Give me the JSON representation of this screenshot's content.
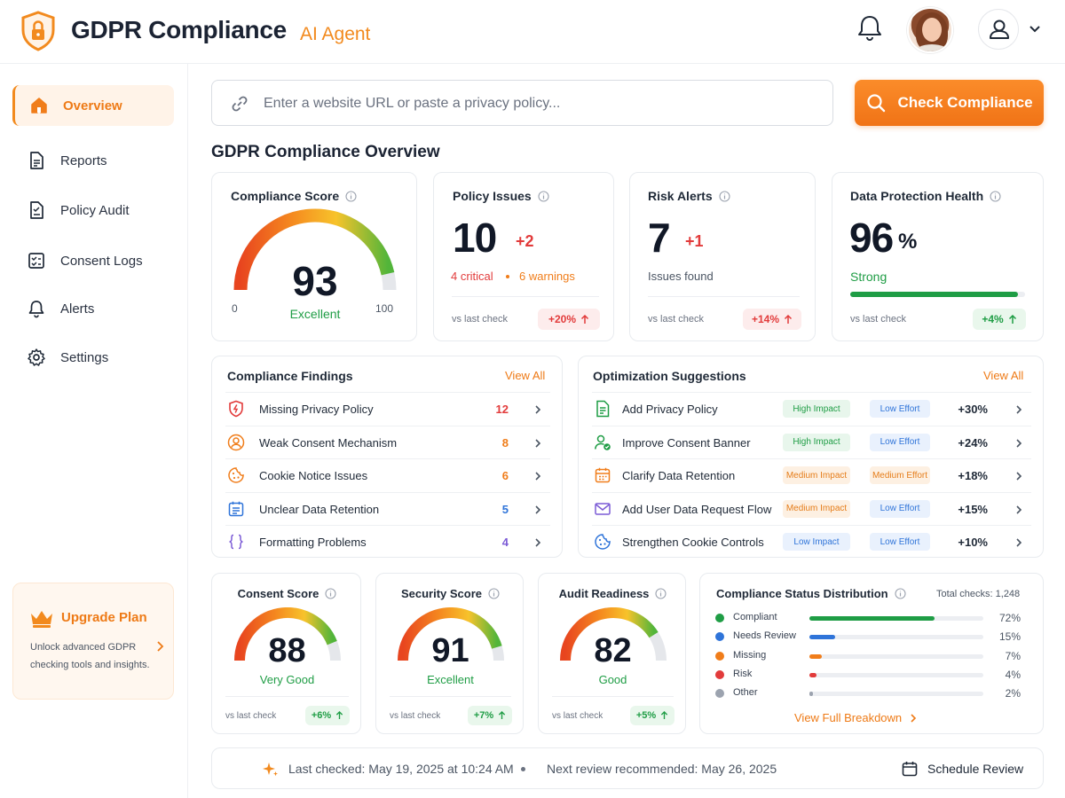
{
  "header": {
    "app_title": "GDPR Compliance",
    "app_subtitle": "AI Agent"
  },
  "sidebar": {
    "items": [
      {
        "label": "Overview",
        "icon": "home-icon",
        "active": true
      },
      {
        "label": "Reports",
        "icon": "document-icon"
      },
      {
        "label": "Policy Audit",
        "icon": "policy-document-icon"
      },
      {
        "label": "Consent Logs",
        "icon": "checklist-icon"
      },
      {
        "label": "Alerts",
        "icon": "bell-icon"
      },
      {
        "label": "Settings",
        "icon": "gear-icon"
      }
    ],
    "upgrade": {
      "title": "Upgrade Plan",
      "description": "Unlock advanced GDPR checking tools and insights."
    }
  },
  "search": {
    "placeholder": "Enter a website URL or paste a privacy policy...",
    "button_label": "Check Compliance"
  },
  "section_title": "GDPR Compliance Overview",
  "score_card": {
    "title": "Compliance Score",
    "value": "93",
    "rating": "Excellent",
    "min": "0",
    "max": "100"
  },
  "policy_issues": {
    "title": "Policy Issues",
    "value": "10",
    "delta": "+2",
    "critical": "4 critical",
    "warnings": "6 warnings",
    "vs_label": "vs last check",
    "change": "+20%"
  },
  "risk_alerts": {
    "title": "Risk Alerts",
    "value": "7",
    "delta": "+1",
    "subtitle": "Issues found",
    "vs_label": "vs last check",
    "change": "+14%"
  },
  "health": {
    "title": "Data Protection Health",
    "value": "96",
    "unit": "%",
    "status": "Strong",
    "level": 0.96,
    "vs_label": "vs last check",
    "change": "+4%"
  },
  "findings": {
    "title": "Compliance Findings",
    "view_all": "View All",
    "items": [
      {
        "label": "Missing Privacy Policy",
        "count": "12",
        "icon": "shield-alert-icon",
        "color": "#e23b3b"
      },
      {
        "label": "Weak Consent Mechanism",
        "count": "8",
        "icon": "user-circle-icon",
        "color": "#f07d1a"
      },
      {
        "label": "Cookie Notice Issues",
        "count": "6",
        "icon": "cookie-icon",
        "color": "#f07d1a"
      },
      {
        "label": "Unclear Data Retention",
        "count": "5",
        "icon": "calendar-list-icon",
        "color": "#2f74d9"
      },
      {
        "label": "Formatting Problems",
        "count": "4",
        "icon": "braces-icon",
        "color": "#7c5cd6"
      }
    ]
  },
  "suggestions": {
    "title": "Optimization Suggestions",
    "view_all": "View All",
    "items": [
      {
        "label": "Add Privacy Policy",
        "impact": "High Impact",
        "impact_level": "high",
        "effort": "Low Effort",
        "effort_level": "low",
        "gain": "+30%",
        "icon": "document-icon"
      },
      {
        "label": "Improve Consent Banner",
        "impact": "High Impact",
        "impact_level": "high",
        "effort": "Low Effort",
        "effort_level": "low",
        "gain": "+24%",
        "icon": "user-check-icon"
      },
      {
        "label": "Clarify Data Retention",
        "impact": "Medium Impact",
        "impact_level": "medium",
        "effort": "Medium Effort",
        "effort_level": "medium",
        "gain": "+18%",
        "icon": "calendar-icon"
      },
      {
        "label": "Add User Data Request Flow",
        "impact": "Medium Impact",
        "impact_level": "medium",
        "effort": "Low Effort",
        "effort_level": "low",
        "gain": "+15%",
        "icon": "mail-icon"
      },
      {
        "label": "Strengthen Cookie Controls",
        "impact": "Low Impact",
        "impact_level": "low",
        "effort": "Low Effort",
        "effort_level": "low",
        "gain": "+10%",
        "icon": "cookie-icon"
      }
    ]
  },
  "mini_scores": [
    {
      "title": "Consent Score",
      "value": "88",
      "rating": "Very Good",
      "rating_color": "#1f9d45",
      "vs_label": "vs last check",
      "change": "+6%"
    },
    {
      "title": "Security Score",
      "value": "91",
      "rating": "Excellent",
      "rating_color": "#1f9d45",
      "vs_label": "vs last check",
      "change": "+7%"
    },
    {
      "title": "Audit Readiness",
      "value": "82",
      "rating": "Good",
      "rating_color": "#1f9d45",
      "vs_label": "vs last check",
      "change": "+5%"
    }
  ],
  "distribution": {
    "title": "Compliance Status Distribution",
    "total": "Total checks: 1,248",
    "items": [
      {
        "label": "Compliant",
        "pct": "72%",
        "value": 72,
        "color": "#1f9d45"
      },
      {
        "label": "Needs Review",
        "pct": "15%",
        "value": 15,
        "color": "#2f74d9"
      },
      {
        "label": "Missing",
        "pct": "7%",
        "value": 7,
        "color": "#f07d1a"
      },
      {
        "label": "Risk",
        "pct": "4%",
        "value": 4,
        "color": "#e23b3b"
      },
      {
        "label": "Other",
        "pct": "2%",
        "value": 2,
        "color": "#9ca3af"
      }
    ],
    "link": "View Full Breakdown"
  },
  "footer": {
    "last_checked": "Last checked: May 19, 2025 at 10:24 AM",
    "next_review": "Next review recommended: May 26, 2025",
    "schedule_label": "Schedule Review"
  },
  "colors": {
    "accent": "#f07d1a",
    "good": "#1f9d45",
    "bad": "#e23b3b"
  }
}
